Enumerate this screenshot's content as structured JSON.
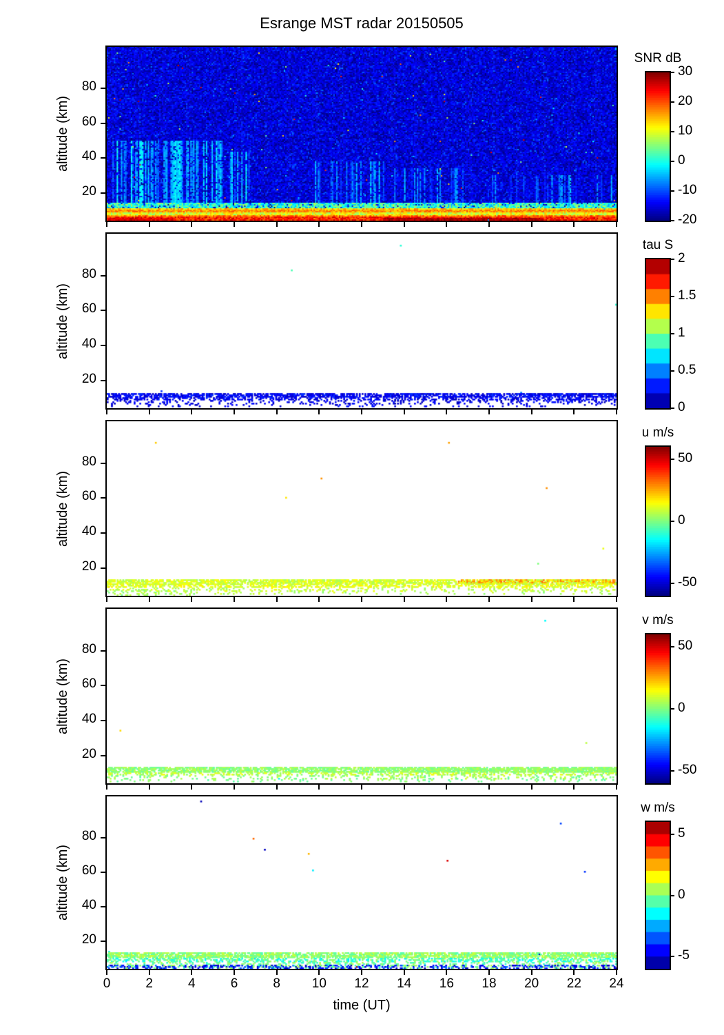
{
  "title": "Esrange MST radar 20150505",
  "chart_data": {
    "type": "heatmap",
    "title": "Esrange MST radar 20150505",
    "x_label": "time (UT)",
    "x_ticks": [
      0,
      2,
      4,
      6,
      8,
      10,
      12,
      14,
      16,
      18,
      20,
      22,
      24
    ],
    "x_range": [
      0,
      24
    ],
    "y_label": "altitude (km)",
    "y_ticks": [
      20,
      40,
      60,
      80
    ],
    "y_range": [
      4,
      104
    ],
    "grid": false,
    "legend_position": "right-colorbar-per-panel",
    "panels": [
      {
        "name": "snr",
        "colorbar_label": "SNR dB",
        "colorbar_ticks": [
          30,
          20,
          10,
          0,
          -10,
          -20
        ],
        "value_range": [
          -20,
          30
        ],
        "colorbar_segments": 64,
        "noise": {
          "mean": -15.5,
          "sd": 2.6
        },
        "speckle": {
          "coverage": 0.002,
          "value": [
            -6,
            28
          ]
        },
        "streaks": [
          {
            "t": [
              0.2,
              5.6
            ],
            "alt": [
              13,
              50
            ],
            "density": 0.6,
            "value": [
              -10,
              -1
            ]
          },
          {
            "t": [
              5.8,
              6.8
            ],
            "alt": [
              13,
              44
            ],
            "density": 0.5,
            "value": [
              -10,
              -2
            ]
          },
          {
            "t": [
              9.6,
              13.5
            ],
            "alt": [
              13,
              38
            ],
            "density": 0.28,
            "value": [
              -12,
              -4
            ]
          },
          {
            "t": [
              13.5,
              17.5
            ],
            "alt": [
              13,
              34
            ],
            "density": 0.22,
            "value": [
              -12,
              -5
            ]
          },
          {
            "t": [
              17.5,
              24
            ],
            "alt": [
              13,
              30
            ],
            "density": 0.25,
            "value": [
              -12,
              -5
            ]
          }
        ],
        "bands": [
          {
            "alt": [
              11.5,
              14.5
            ],
            "value": [
              -6,
              8
            ],
            "coverage": 0.9
          },
          {
            "alt": [
              10,
              11.5
            ],
            "value": [
              8,
              18
            ],
            "coverage": 1
          },
          {
            "alt": [
              9,
              10
            ],
            "value": [
              13,
              20
            ],
            "coverage": 1
          },
          {
            "alt": [
              7.5,
              9
            ],
            "value": [
              5,
              15
            ],
            "coverage": 1
          },
          {
            "alt": [
              6,
              7.5
            ],
            "value": [
              12,
              22
            ],
            "coverage": 1
          },
          {
            "alt": [
              4,
              6
            ],
            "value": [
              18,
              27
            ],
            "coverage": 1
          },
          {
            "t": [
              0,
              3.2
            ],
            "alt": [
              4,
              5.5
            ],
            "value": [
              22,
              28
            ],
            "coverage": 1
          },
          {
            "t": [
              13,
              20.5
            ],
            "alt": [
              4,
              5.5
            ],
            "value": [
              25,
              30
            ],
            "coverage": 1
          }
        ]
      },
      {
        "name": "tau",
        "colorbar_label": "tau S",
        "colorbar_ticks": [
          2,
          1.5,
          1,
          0.5,
          0
        ],
        "value_range": [
          0,
          2
        ],
        "colorbar_segments": 10,
        "speckle": {
          "coverage": 0.0001,
          "value": [
            0.3,
            1.0
          ]
        },
        "bands": [
          {
            "alt": [
              10,
              12.5
            ],
            "value": [
              0.12,
              0.35
            ],
            "coverage": 0.72
          },
          {
            "alt": [
              8.5,
              10
            ],
            "value": [
              0.12,
              0.32
            ],
            "coverage": 0.5
          },
          {
            "alt": [
              6.5,
              8.5
            ],
            "value": [
              0.1,
              0.3
            ],
            "coverage": 0.2
          },
          {
            "alt": [
              4.5,
              6.5
            ],
            "value": [
              0.1,
              0.3
            ],
            "coverage": 0.1
          }
        ]
      },
      {
        "name": "u",
        "colorbar_label": "u m/s",
        "colorbar_ticks": [
          50,
          0,
          -50
        ],
        "value_range": [
          -60,
          60
        ],
        "colorbar_segments": 64,
        "speckle": {
          "coverage": 0.00012,
          "value": [
            -20,
            30
          ]
        },
        "bands": [
          {
            "alt": [
              10.5,
              13.5
            ],
            "value": [
              4,
              16
            ],
            "coverage": 0.8
          },
          {
            "t": [
              16.5,
              24
            ],
            "alt": [
              11,
              13.5
            ],
            "value": [
              18,
              32
            ],
            "coverage": 0.45
          },
          {
            "alt": [
              8.5,
              10.5
            ],
            "value": [
              6,
              18
            ],
            "coverage": 0.5
          },
          {
            "alt": [
              6.5,
              8.5
            ],
            "value": [
              2,
              14
            ],
            "coverage": 0.22
          },
          {
            "t": [
              0,
              4
            ],
            "alt": [
              4,
              7
            ],
            "value": [
              -2,
              10
            ],
            "coverage": 0.2
          },
          {
            "alt": [
              4.5,
              6.5
            ],
            "value": [
              0,
              12
            ],
            "coverage": 0.1
          }
        ]
      },
      {
        "name": "v",
        "colorbar_label": "v m/s",
        "colorbar_ticks": [
          50,
          0,
          -50
        ],
        "value_range": [
          -60,
          60
        ],
        "colorbar_segments": 64,
        "speckle": {
          "coverage": 0.0001,
          "value": [
            -20,
            20
          ]
        },
        "bands": [
          {
            "alt": [
              10.5,
              13.5
            ],
            "value": [
              -4,
              8
            ],
            "coverage": 0.78
          },
          {
            "t": [
              14,
              24
            ],
            "alt": [
              10.5,
              13
            ],
            "value": [
              -2,
              7
            ],
            "coverage": 0.6
          },
          {
            "alt": [
              8.5,
              10.5
            ],
            "value": [
              0,
              14
            ],
            "coverage": 0.45
          },
          {
            "alt": [
              6.5,
              8.5
            ],
            "value": [
              -4,
              10
            ],
            "coverage": 0.22
          },
          {
            "alt": [
              4.5,
              6.5
            ],
            "value": [
              -6,
              6
            ],
            "coverage": 0.1
          }
        ]
      },
      {
        "name": "w",
        "colorbar_label": "w m/s",
        "colorbar_ticks": [
          5,
          0,
          -5
        ],
        "value_range": [
          -6,
          6
        ],
        "colorbar_segments": 12,
        "speckle": {
          "coverage": 0.0002,
          "value": [
            -6,
            6
          ]
        },
        "bands": [
          {
            "alt": [
              10.5,
              13.5
            ],
            "value": [
              -0.6,
              1.0
            ],
            "coverage": 0.8
          },
          {
            "alt": [
              8,
              10.5
            ],
            "value": [
              -1.8,
              0.6
            ],
            "coverage": 0.5
          },
          {
            "alt": [
              6,
              8
            ],
            "value": [
              -1,
              0.8
            ],
            "coverage": 0.28
          },
          {
            "alt": [
              4,
              6
            ],
            "value": [
              -5.5,
              -3
            ],
            "coverage": 0.4
          },
          {
            "alt": [
              4,
              6
            ],
            "value": [
              -1,
              0.6
            ],
            "coverage": 0.12
          }
        ]
      }
    ]
  }
}
